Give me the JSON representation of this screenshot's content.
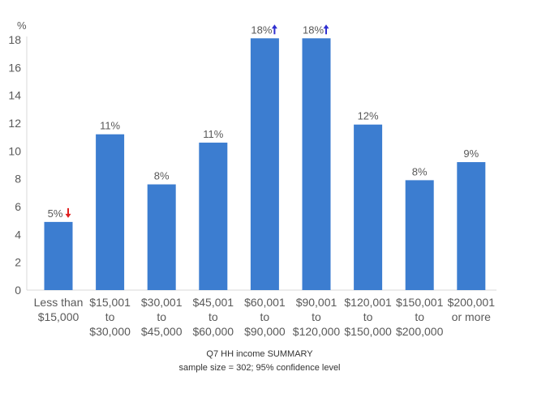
{
  "chart_data": {
    "type": "bar",
    "y_unit": "%",
    "ylim": [
      0,
      18
    ],
    "y_ticks": [
      0,
      2,
      4,
      6,
      8,
      10,
      12,
      14,
      16,
      18
    ],
    "grid": false,
    "categories": [
      [
        "Less than",
        "$15,000"
      ],
      [
        "$15,001",
        "to",
        "$30,000"
      ],
      [
        "$30,001",
        "to",
        "$45,000"
      ],
      [
        "$45,001",
        "to",
        "$60,000"
      ],
      [
        "$60,001",
        "to",
        "$90,000"
      ],
      [
        "$90,001",
        "to",
        "$120,000"
      ],
      [
        "$120,001",
        "to",
        "$150,000"
      ],
      [
        "$150,001",
        "to",
        "$200,000"
      ],
      [
        "$200,001",
        "or more"
      ]
    ],
    "values": [
      4.9,
      11.2,
      7.6,
      10.6,
      18.1,
      18.1,
      11.9,
      7.9,
      9.2
    ],
    "data_labels": [
      "5%",
      "11%",
      "8%",
      "11%",
      "18%",
      "18%",
      "12%",
      "8%",
      "9%"
    ],
    "significance": [
      "down",
      "",
      "",
      "",
      "up",
      "up",
      "",
      "",
      ""
    ],
    "bar_color": "#3c7dd0",
    "label_color": "#595959",
    "down_color": "#e02020",
    "up_color": "#2f2fd0",
    "title": "Q7 HH income SUMMARY",
    "subtitle": "sample size = 302; 95% confidence level"
  }
}
